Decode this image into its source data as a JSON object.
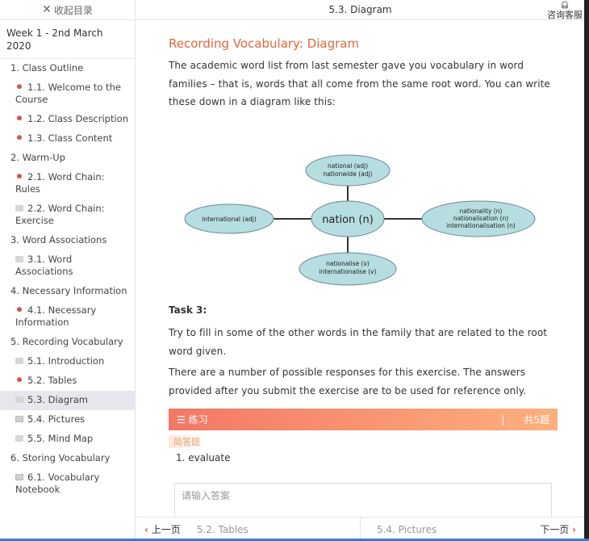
{
  "sidebar": {
    "collapse_label": "收起目录",
    "week": "Week 1 - 2nd March 2020",
    "items": [
      {
        "label": "1. Class Outline",
        "level": 0
      },
      {
        "label": "1.1. Welcome to the Course",
        "level": 1,
        "icon": "done"
      },
      {
        "label": "1.2. Class Description",
        "level": 1,
        "icon": "done"
      },
      {
        "label": "1.3. Class Content",
        "level": 1,
        "icon": "done"
      },
      {
        "label": "2. Warm-Up",
        "level": 0
      },
      {
        "label": "2.1. Word Chain: Rules",
        "level": 1,
        "icon": "done"
      },
      {
        "label": "2.2. Word Chain: Exercise",
        "level": 1,
        "icon": "edit"
      },
      {
        "label": "3. Word Associations",
        "level": 0
      },
      {
        "label": "3.1. Word Associations",
        "level": 1,
        "icon": "edit"
      },
      {
        "label": "4. Necessary Information",
        "level": 0
      },
      {
        "label": "4.1. Necessary Information",
        "level": 1,
        "icon": "done"
      },
      {
        "label": "5. Recording Vocabulary",
        "level": 0
      },
      {
        "label": "5.1. Introduction",
        "level": 1,
        "icon": "edit"
      },
      {
        "label": "5.2. Tables",
        "level": 1,
        "icon": "done"
      },
      {
        "label": "5.3. Diagram",
        "level": 1,
        "icon": "edit",
        "active": true
      },
      {
        "label": "5.4. Pictures",
        "level": 1,
        "icon": "doc"
      },
      {
        "label": "5.5. Mind Map",
        "level": 1,
        "icon": "edit"
      },
      {
        "label": "6. Storing Vocabulary",
        "level": 0
      },
      {
        "label": "6.1. Vocabulary Notebook",
        "level": 1,
        "icon": "doc"
      }
    ]
  },
  "header": {
    "title": "5.3. Diagram",
    "service": "咨询客服"
  },
  "main": {
    "title": "Recording Vocabulary: Diagram",
    "intro": "The academic word list from last semester gave you vocabulary in word families – that is, words that all come from the same root word. You can write these down in a diagram like this:",
    "diagram": {
      "center": "nation (n)",
      "top": [
        "national (adj)",
        "nationwide (adj)"
      ],
      "left": [
        "international (adj)"
      ],
      "right": [
        "nationality (n)",
        "nationalisation (n)",
        "internationalisation (n)"
      ],
      "bottom": [
        "nationalise (v)",
        "internationalise (v)"
      ]
    },
    "task_label": "Task 3:",
    "task_text": "Try to fill in some of the other words in the family that are related to the root word given.",
    "note": "There are a number of possible responses for this exercise. The answers provided after you submit the exercise are to be used for reference only.",
    "exercise": {
      "label": "练习",
      "sep": "|",
      "count": "共5题",
      "type": "简答题",
      "question": "1. evaluate",
      "placeholder": "请输入答案"
    }
  },
  "footer": {
    "prev_label": "上一页",
    "prev_title": "5.2. Tables",
    "next_title": "5.4. Pictures",
    "next_label": "下一页"
  }
}
